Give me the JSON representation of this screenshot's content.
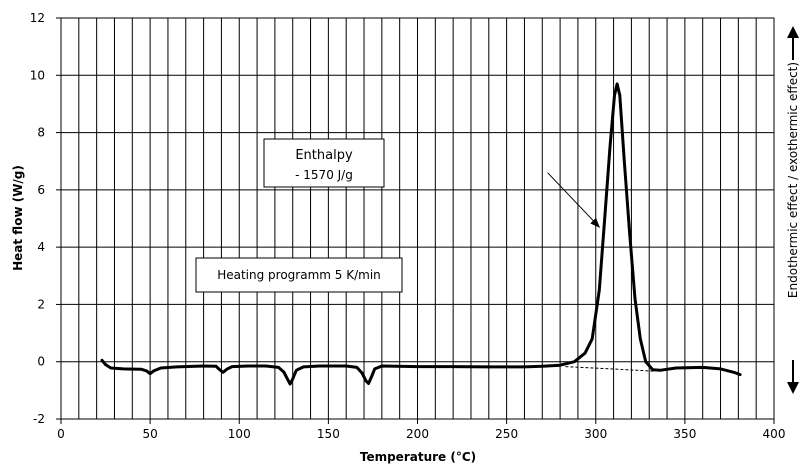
{
  "chart_data": {
    "type": "line",
    "title": "",
    "xlabel": "Temperature (°C)",
    "ylabel": "Heat flow (W/g)",
    "right_label": "Endothermic effect / exothermic effect)",
    "xlim": [
      0,
      400
    ],
    "ylim": [
      -2,
      12
    ],
    "x_ticks": [
      0,
      50,
      100,
      150,
      200,
      250,
      300,
      350,
      400
    ],
    "y_ticks": [
      -2,
      0,
      2,
      4,
      6,
      8,
      10,
      12
    ],
    "grid": {
      "vertical_step": 10,
      "horizontal_step": 2
    },
    "series": [
      {
        "points": [
          [
            23,
            0.05
          ],
          [
            25,
            -0.1
          ],
          [
            28,
            -0.22
          ],
          [
            35,
            -0.25
          ],
          [
            45,
            -0.26
          ],
          [
            48,
            -0.32
          ],
          [
            50,
            -0.42
          ],
          [
            52,
            -0.32
          ],
          [
            56,
            -0.22
          ],
          [
            65,
            -0.18
          ],
          [
            80,
            -0.15
          ],
          [
            87,
            -0.16
          ],
          [
            89,
            -0.28
          ],
          [
            91,
            -0.37
          ],
          [
            93,
            -0.26
          ],
          [
            96,
            -0.17
          ],
          [
            105,
            -0.15
          ],
          [
            115,
            -0.15
          ],
          [
            122,
            -0.2
          ],
          [
            125,
            -0.36
          ],
          [
            127,
            -0.6
          ],
          [
            128.5,
            -0.78
          ],
          [
            130,
            -0.6
          ],
          [
            132,
            -0.3
          ],
          [
            136,
            -0.18
          ],
          [
            145,
            -0.15
          ],
          [
            160,
            -0.15
          ],
          [
            166,
            -0.2
          ],
          [
            169,
            -0.4
          ],
          [
            171,
            -0.66
          ],
          [
            172.5,
            -0.76
          ],
          [
            174,
            -0.55
          ],
          [
            176,
            -0.25
          ],
          [
            180,
            -0.15
          ],
          [
            200,
            -0.17
          ],
          [
            220,
            -0.17
          ],
          [
            240,
            -0.18
          ],
          [
            260,
            -0.18
          ],
          [
            270,
            -0.16
          ],
          [
            280,
            -0.12
          ],
          [
            288,
            0.0
          ],
          [
            294,
            0.3
          ],
          [
            298,
            0.8
          ],
          [
            302,
            2.5
          ],
          [
            305,
            5.0
          ],
          [
            308,
            7.5
          ],
          [
            310.5,
            9.3
          ],
          [
            312,
            9.7
          ],
          [
            313.5,
            9.3
          ],
          [
            316,
            7.0
          ],
          [
            319,
            4.5
          ],
          [
            322,
            2.2
          ],
          [
            325,
            0.8
          ],
          [
            328,
            0.0
          ],
          [
            332,
            -0.28
          ],
          [
            336,
            -0.3
          ],
          [
            345,
            -0.22
          ],
          [
            360,
            -0.2
          ],
          [
            370,
            -0.25
          ],
          [
            378,
            -0.38
          ],
          [
            381,
            -0.45
          ]
        ]
      }
    ],
    "baseline": [
      [
        283,
        -0.17
      ],
      [
        333,
        -0.33
      ]
    ],
    "annotation_arrow": {
      "from": [
        273,
        6.6
      ],
      "to": [
        302,
        4.7
      ]
    },
    "annotations": {
      "enthalpy_title": "Enthalpy",
      "enthalpy_value": "- 1570 J/g",
      "heating": "Heating programm 5 K/min"
    },
    "colors": {
      "line": "#000000",
      "grid": "#000000",
      "plot_bg": "#ffffff"
    }
  }
}
